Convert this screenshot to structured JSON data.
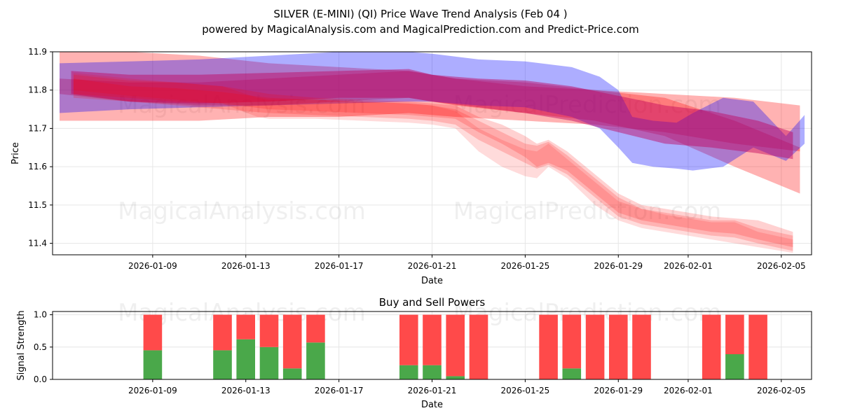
{
  "chart_data": [
    {
      "type": "area",
      "title": "SILVER (E-MINI) (QI) Price Wave Trend Analysis (Feb 04 )",
      "subtitle": "powered by MagicalAnalysis.com and MagicalPrediction.com and Predict-Price.com",
      "xlabel": "Date",
      "ylabel": "Price",
      "xlim": [
        -2.3,
        30.3
      ],
      "ylim": [
        11.37,
        11.9
      ],
      "x_ticks": [
        2,
        6,
        10,
        14,
        18,
        22,
        25,
        29
      ],
      "x_tick_labels": [
        "2026-01-09",
        "2026-01-13",
        "2026-01-17",
        "2026-01-21",
        "2026-01-25",
        "2026-01-29",
        "2026-02-01",
        "2026-02-05"
      ],
      "y_ticks": [
        11.4,
        11.5,
        11.6,
        11.7,
        11.8,
        11.9
      ],
      "y_tick_labels": [
        "11.4",
        "11.5",
        "11.6",
        "11.7",
        "11.8",
        "11.9"
      ],
      "grid": true,
      "watermarks": [
        "MagicalAnalysis.com",
        "MagicalPrediction.com"
      ],
      "colors": {
        "red_band": "#ff0000",
        "blue_band": "#0000ff",
        "crimson_band": "#c0005a"
      },
      "series": [
        {
          "name": "upper-red-wave",
          "color": "#ff0000",
          "opacity": 0.3,
          "x": [
            -2,
            1,
            4,
            7,
            10,
            13,
            15,
            18,
            21,
            24,
            27,
            29.8
          ],
          "upper": [
            11.91,
            11.9,
            11.89,
            11.87,
            11.86,
            11.85,
            11.83,
            11.81,
            11.8,
            11.79,
            11.78,
            11.76
          ],
          "lower": [
            11.72,
            11.72,
            11.72,
            11.73,
            11.73,
            11.74,
            11.73,
            11.72,
            11.71,
            11.69,
            11.66,
            11.64
          ]
        },
        {
          "name": "lower-red-wave",
          "color": "#ff0000",
          "opacity": 0.3,
          "x": [
            -2,
            1,
            4,
            7,
            10,
            13,
            15,
            18,
            21,
            24,
            27,
            29.8
          ],
          "upper": [
            11.83,
            11.82,
            11.82,
            11.83,
            11.84,
            11.85,
            11.83,
            11.82,
            11.8,
            11.78,
            11.72,
            11.65
          ],
          "lower": [
            11.79,
            11.77,
            11.76,
            11.76,
            11.77,
            11.78,
            11.76,
            11.74,
            11.72,
            11.68,
            11.6,
            11.53
          ]
        },
        {
          "name": "blue-wave",
          "color": "#0000ff",
          "opacity": 0.32,
          "x": [
            -2,
            1,
            4,
            7,
            10,
            13,
            14,
            16,
            18,
            20,
            21.2,
            22,
            22.6,
            23.5,
            24.5,
            25.2,
            26.5,
            27.8,
            29.2,
            30
          ],
          "upper": [
            11.87,
            11.875,
            11.88,
            11.89,
            11.9,
            11.9,
            11.895,
            11.88,
            11.875,
            11.86,
            11.835,
            11.8,
            11.73,
            11.72,
            11.715,
            11.74,
            11.78,
            11.77,
            11.68,
            11.735
          ],
          "lower": [
            11.74,
            11.75,
            11.755,
            11.76,
            11.765,
            11.77,
            11.77,
            11.76,
            11.755,
            11.73,
            11.7,
            11.65,
            11.61,
            11.6,
            11.595,
            11.59,
            11.6,
            11.65,
            11.615,
            11.66
          ]
        },
        {
          "name": "crimson-core-wave",
          "color": "#c0005a",
          "opacity": 0.45,
          "x": [
            -1.5,
            1,
            4,
            7,
            10,
            13,
            14,
            16,
            18,
            20,
            22,
            24,
            26,
            28,
            29.5
          ],
          "upper": [
            11.85,
            11.84,
            11.84,
            11.845,
            11.85,
            11.855,
            11.84,
            11.83,
            11.825,
            11.81,
            11.785,
            11.76,
            11.745,
            11.72,
            11.69
          ],
          "lower": [
            11.79,
            11.77,
            11.765,
            11.77,
            11.78,
            11.78,
            11.77,
            11.755,
            11.74,
            11.72,
            11.69,
            11.66,
            11.65,
            11.635,
            11.62
          ]
        },
        {
          "name": "forecast-red-wave-1",
          "color": "#ff0000",
          "opacity": 0.18,
          "x": [
            -1.4,
            1,
            3,
            5,
            7,
            9,
            11,
            13,
            14,
            15,
            16,
            17,
            18,
            18.5,
            19,
            19.8,
            21,
            22,
            23,
            24,
            25,
            26,
            27,
            28,
            29.5
          ],
          "upper": [
            11.84,
            11.825,
            11.82,
            11.81,
            11.79,
            11.78,
            11.775,
            11.77,
            11.765,
            11.76,
            11.73,
            11.71,
            11.68,
            11.66,
            11.67,
            11.64,
            11.58,
            11.53,
            11.5,
            11.49,
            11.48,
            11.47,
            11.465,
            11.46,
            11.43
          ],
          "lower": [
            11.79,
            11.78,
            11.77,
            11.765,
            11.75,
            11.745,
            11.74,
            11.735,
            11.73,
            11.725,
            11.69,
            11.66,
            11.625,
            11.6,
            11.61,
            11.59,
            11.53,
            11.48,
            11.46,
            11.45,
            11.44,
            11.43,
            11.425,
            11.41,
            11.39
          ]
        },
        {
          "name": "forecast-red-wave-2",
          "color": "#ff0000",
          "opacity": 0.18,
          "x": [
            -1.4,
            1,
            3,
            5,
            7,
            9,
            11,
            13,
            14,
            15,
            16,
            17,
            18,
            18.5,
            19,
            19.8,
            21,
            22,
            23,
            24,
            25,
            26,
            27,
            28,
            29.5
          ],
          "upper": [
            11.83,
            11.81,
            11.805,
            11.795,
            11.78,
            11.775,
            11.77,
            11.765,
            11.76,
            11.75,
            11.72,
            11.69,
            11.66,
            11.655,
            11.665,
            11.63,
            11.57,
            11.52,
            11.49,
            11.48,
            11.47,
            11.46,
            11.46,
            11.44,
            11.42
          ],
          "lower": [
            11.78,
            11.77,
            11.76,
            11.75,
            11.74,
            11.735,
            11.73,
            11.725,
            11.72,
            11.71,
            11.67,
            11.64,
            11.61,
            11.595,
            11.605,
            11.58,
            11.52,
            11.47,
            11.45,
            11.44,
            11.43,
            11.42,
            11.415,
            11.4,
            11.38
          ]
        },
        {
          "name": "forecast-red-wave-3",
          "color": "#ff0000",
          "opacity": 0.14,
          "x": [
            -1.4,
            1,
            3,
            5,
            6.5,
            7,
            9,
            11,
            13,
            14,
            15,
            16,
            17,
            18,
            18.5,
            19,
            19.8,
            21,
            22,
            23,
            24,
            25,
            26,
            27,
            28,
            29.5
          ],
          "upper": [
            11.845,
            11.83,
            11.82,
            11.81,
            11.78,
            11.775,
            11.775,
            11.77,
            11.765,
            11.76,
            11.745,
            11.7,
            11.67,
            11.645,
            11.64,
            11.66,
            11.62,
            11.56,
            11.51,
            11.49,
            11.475,
            11.465,
            11.455,
            11.455,
            11.43,
            11.41
          ],
          "lower": [
            11.8,
            11.785,
            11.775,
            11.765,
            11.73,
            11.725,
            11.725,
            11.72,
            11.715,
            11.71,
            11.7,
            11.64,
            11.6,
            11.575,
            11.57,
            11.6,
            11.57,
            11.5,
            11.46,
            11.44,
            11.43,
            11.42,
            11.41,
            11.4,
            11.39,
            11.375
          ]
        }
      ]
    },
    {
      "type": "bar",
      "title": "Buy and Sell Powers",
      "xlabel": "Date",
      "ylabel": "Signal Strength",
      "xlim": [
        -2.3,
        30.3
      ],
      "ylim": [
        0,
        1.05
      ],
      "x_ticks": [
        2,
        6,
        10,
        14,
        18,
        22,
        25,
        29
      ],
      "x_tick_labels": [
        "2026-01-09",
        "2026-01-13",
        "2026-01-17",
        "2026-01-21",
        "2026-01-25",
        "2026-01-29",
        "2026-02-01",
        "2026-02-05"
      ],
      "y_ticks": [
        0,
        0.5,
        1
      ],
      "y_tick_labels": [
        "0.0",
        "0.5",
        "1.0"
      ],
      "grid": true,
      "watermarks": [
        "MagicalAnalysis.com",
        "MagicalPrediction.com"
      ],
      "colors": {
        "buy": "#4aa84a",
        "sell": "#ff4a4a"
      },
      "x": [
        2,
        5,
        6,
        7,
        8,
        9,
        13,
        14,
        15,
        16,
        19,
        20,
        21,
        22,
        23,
        26,
        27,
        28
      ],
      "series": [
        {
          "name": "Buy",
          "color": "#4aa84a",
          "values": [
            0.45,
            0.45,
            0.62,
            0.5,
            0.17,
            0.57,
            0.22,
            0.22,
            0.05,
            0,
            0,
            0.17,
            0,
            0,
            0,
            0,
            0.39,
            0
          ]
        },
        {
          "name": "Sell",
          "color": "#ff4a4a",
          "values": [
            0.55,
            0.55,
            0.38,
            0.5,
            0.83,
            0.43,
            0.78,
            0.78,
            0.95,
            1,
            1,
            0.83,
            1,
            1,
            1,
            1,
            0.61,
            1
          ]
        }
      ]
    }
  ]
}
